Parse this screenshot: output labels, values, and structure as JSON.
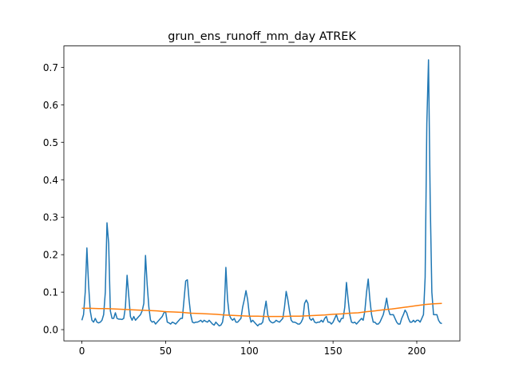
{
  "chart_data": {
    "type": "line",
    "title": "grun_ens_runoff_mm_day ATREK",
    "xlim": [
      -10.75,
      225.75
    ],
    "ylim": [
      -0.03,
      0.757
    ],
    "xticks": [
      0,
      50,
      100,
      150,
      200
    ],
    "yticks": [
      {
        "value": 0,
        "label": "0.0"
      },
      0.1,
      0.2,
      0.3,
      0.4,
      0.5,
      0.6,
      0.7
    ],
    "grid": false,
    "series": [
      {
        "color": "#1f77b4",
        "x": [
          0,
          1,
          2,
          3,
          4,
          5,
          6,
          7,
          8,
          9,
          10,
          11,
          12,
          13,
          14,
          15,
          16,
          17,
          18,
          19,
          20,
          21,
          22,
          23,
          24,
          25,
          26,
          27,
          28,
          29,
          30,
          31,
          32,
          33,
          34,
          35,
          36,
          37,
          38,
          39,
          40,
          41,
          42,
          43,
          44,
          45,
          46,
          47,
          48,
          49,
          50,
          51,
          52,
          53,
          54,
          55,
          56,
          57,
          58,
          59,
          60,
          61,
          62,
          63,
          64,
          65,
          66,
          67,
          68,
          69,
          70,
          71,
          72,
          73,
          74,
          75,
          76,
          77,
          78,
          79,
          80,
          81,
          82,
          83,
          84,
          85,
          86,
          87,
          88,
          89,
          90,
          91,
          92,
          93,
          94,
          95,
          96,
          97,
          98,
          99,
          100,
          101,
          102,
          103,
          104,
          105,
          106,
          107,
          108,
          109,
          110,
          111,
          112,
          113,
          114,
          115,
          116,
          117,
          118,
          119,
          120,
          121,
          122,
          123,
          124,
          125,
          126,
          127,
          128,
          129,
          130,
          131,
          132,
          133,
          134,
          135,
          136,
          137,
          138,
          139,
          140,
          141,
          142,
          143,
          144,
          145,
          146,
          147,
          148,
          149,
          150,
          151,
          152,
          153,
          154,
          155,
          156,
          157,
          158,
          159,
          160,
          161,
          162,
          163,
          164,
          165,
          166,
          167,
          168,
          169,
          170,
          171,
          172,
          173,
          174,
          175,
          176,
          177,
          178,
          179,
          180,
          181,
          182,
          183,
          184,
          185,
          186,
          187,
          188,
          189,
          190,
          191,
          192,
          193,
          194,
          195,
          196,
          197,
          198,
          199,
          200,
          201,
          202,
          203,
          204,
          205,
          206,
          207,
          208,
          209,
          210,
          211,
          212,
          213,
          214,
          215
        ],
        "values": [
          0.025,
          0.04,
          0.1,
          0.218,
          0.12,
          0.05,
          0.025,
          0.02,
          0.03,
          0.02,
          0.018,
          0.02,
          0.025,
          0.04,
          0.1,
          0.285,
          0.23,
          0.05,
          0.03,
          0.03,
          0.045,
          0.03,
          0.028,
          0.028,
          0.027,
          0.03,
          0.06,
          0.145,
          0.09,
          0.035,
          0.025,
          0.035,
          0.025,
          0.03,
          0.035,
          0.04,
          0.05,
          0.07,
          0.198,
          0.12,
          0.06,
          0.025,
          0.02,
          0.022,
          0.015,
          0.02,
          0.025,
          0.03,
          0.035,
          0.045,
          0.048,
          0.02,
          0.018,
          0.015,
          0.02,
          0.018,
          0.015,
          0.02,
          0.025,
          0.03,
          0.03,
          0.08,
          0.13,
          0.133,
          0.08,
          0.04,
          0.02,
          0.018,
          0.02,
          0.02,
          0.022,
          0.025,
          0.02,
          0.025,
          0.022,
          0.02,
          0.025,
          0.02,
          0.015,
          0.012,
          0.02,
          0.015,
          0.01,
          0.012,
          0.02,
          0.05,
          0.166,
          0.08,
          0.04,
          0.03,
          0.025,
          0.03,
          0.02,
          0.02,
          0.025,
          0.03,
          0.06,
          0.08,
          0.104,
          0.08,
          0.04,
          0.02,
          0.025,
          0.02,
          0.015,
          0.01,
          0.015,
          0.015,
          0.02,
          0.05,
          0.076,
          0.04,
          0.025,
          0.02,
          0.018,
          0.02,
          0.025,
          0.022,
          0.02,
          0.025,
          0.03,
          0.06,
          0.102,
          0.08,
          0.05,
          0.025,
          0.02,
          0.02,
          0.018,
          0.015,
          0.015,
          0.02,
          0.03,
          0.07,
          0.079,
          0.07,
          0.03,
          0.025,
          0.03,
          0.02,
          0.018,
          0.02,
          0.02,
          0.025,
          0.02,
          0.03,
          0.035,
          0.02,
          0.02,
          0.015,
          0.02,
          0.03,
          0.04,
          0.025,
          0.02,
          0.03,
          0.03,
          0.06,
          0.126,
          0.08,
          0.04,
          0.02,
          0.018,
          0.02,
          0.015,
          0.02,
          0.025,
          0.03,
          0.025,
          0.05,
          0.1,
          0.135,
          0.08,
          0.04,
          0.02,
          0.02,
          0.015,
          0.015,
          0.02,
          0.03,
          0.04,
          0.06,
          0.084,
          0.055,
          0.04,
          0.04,
          0.04,
          0.03,
          0.02,
          0.015,
          0.015,
          0.03,
          0.04,
          0.052,
          0.045,
          0.03,
          0.02,
          0.02,
          0.025,
          0.02,
          0.025,
          0.025,
          0.02,
          0.03,
          0.04,
          0.14,
          0.55,
          0.72,
          0.35,
          0.1,
          0.04,
          0.04,
          0.04,
          0.025,
          0.018,
          0.016
        ]
      },
      {
        "color": "#ff7f0e",
        "x": [
          0,
          5,
          10,
          15,
          20,
          25,
          30,
          35,
          40,
          45,
          50,
          55,
          60,
          65,
          70,
          75,
          80,
          85,
          90,
          95,
          100,
          105,
          110,
          115,
          120,
          125,
          130,
          135,
          140,
          145,
          150,
          155,
          160,
          165,
          170,
          175,
          180,
          185,
          190,
          195,
          200,
          205,
          210,
          215
        ],
        "values": [
          0.057,
          0.057,
          0.056,
          0.056,
          0.055,
          0.054,
          0.053,
          0.052,
          0.051,
          0.05,
          0.048,
          0.047,
          0.046,
          0.044,
          0.043,
          0.042,
          0.041,
          0.039,
          0.038,
          0.037,
          0.036,
          0.036,
          0.035,
          0.035,
          0.035,
          0.036,
          0.036,
          0.037,
          0.038,
          0.039,
          0.041,
          0.042,
          0.044,
          0.045,
          0.048,
          0.05,
          0.053,
          0.055,
          0.058,
          0.061,
          0.064,
          0.067,
          0.069,
          0.07
        ]
      }
    ]
  }
}
